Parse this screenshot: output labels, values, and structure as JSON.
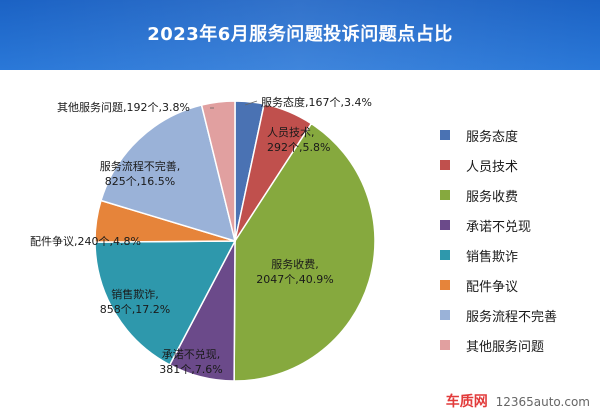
{
  "chart_data": {
    "type": "pie",
    "title": "2023年6月服务问题投诉问题点占比",
    "categories": [
      "服务态度",
      "人员技术",
      "服务收费",
      "承诺不兑现",
      "销售欺诈",
      "配件争议",
      "服务流程不完善",
      "其他服务问题"
    ],
    "values": [
      167,
      292,
      2047,
      381,
      858,
      240,
      825,
      192
    ],
    "percents": [
      "3.4%",
      "5.8%",
      "40.9%",
      "7.6%",
      "17.2%",
      "4.8%",
      "16.5%",
      "3.8%"
    ],
    "colors": [
      "#4a72b3",
      "#c0504d",
      "#86a93e",
      "#6b4a8a",
      "#2e98ac",
      "#e6843a",
      "#9ab2d8",
      "#e1a0a0"
    ],
    "data_labels": [
      [
        "服务态度,167个,3.4%"
      ],
      [
        "人员技术,",
        "292个,5.8%"
      ],
      [
        "服务收费,",
        "2047个,40.9%"
      ],
      [
        "承诺不兑现,",
        "381个,7.6%"
      ],
      [
        "销售欺诈,",
        "858个,17.2%"
      ],
      [
        "配件争议,240个,4.8%"
      ],
      [
        "服务流程不完善,",
        "825个,16.5%"
      ],
      [
        "其他服务问题,192个,3.8%"
      ]
    ],
    "legend": [
      "服务态度",
      "人员技术",
      "服务收费",
      "承诺不兑现",
      "销售欺诈",
      "配件争议",
      "服务流程不完善",
      "其他服务问题"
    ],
    "legend_position": "right"
  },
  "watermark": {
    "brand": "车质网",
    "site": "12365auto.com"
  }
}
